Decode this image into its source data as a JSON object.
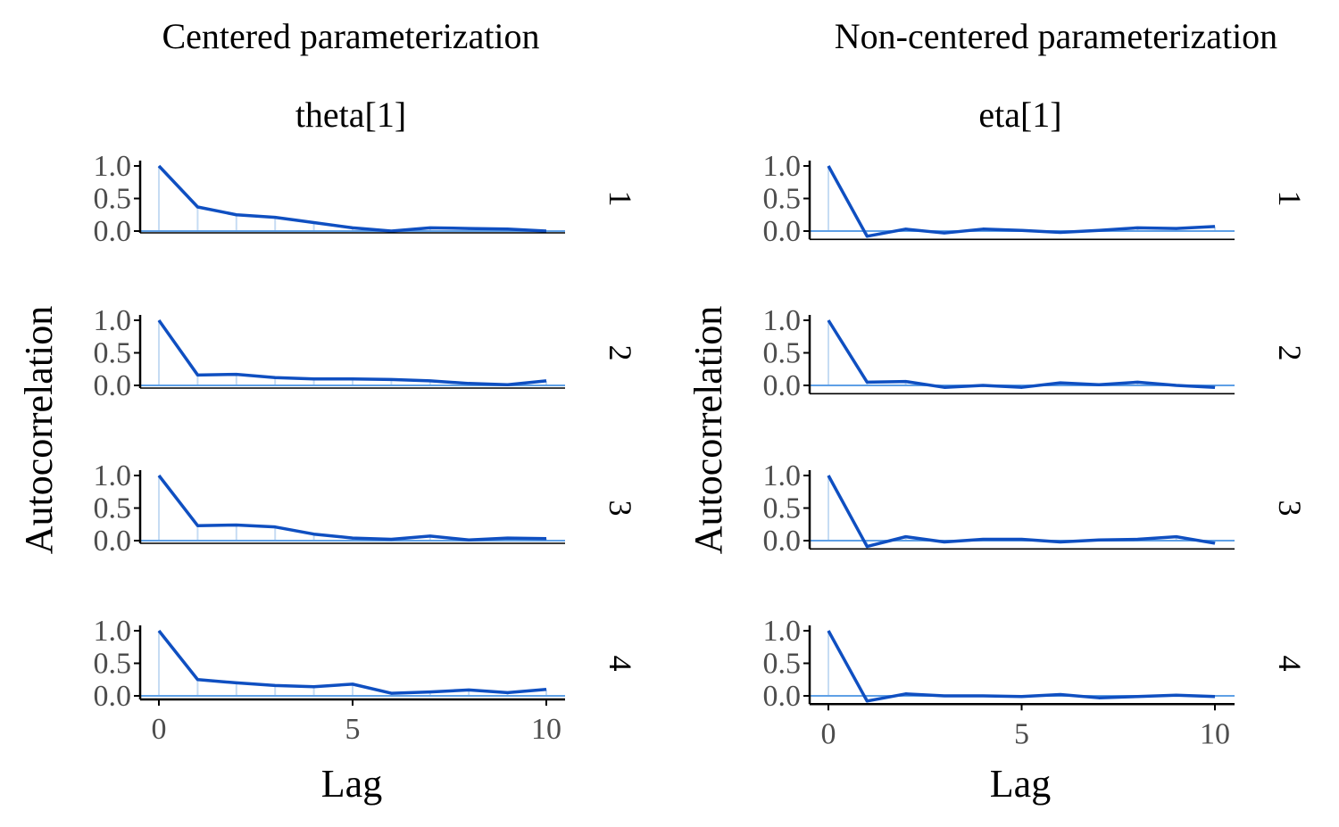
{
  "colors": {
    "line": "#0f4fc1",
    "zero_line": "#5fa0e6",
    "lag_spike": "#c6dcf3",
    "axis": "#000000",
    "tick_text": "#4d4d4d",
    "title_text": "#000000"
  },
  "chart_data": [
    {
      "type": "line",
      "title": "Centered parameterization",
      "parameter": "theta[1]",
      "xlabel": "Lag",
      "ylabel": "Autocorrelation",
      "xlim": [
        0,
        10
      ],
      "ylim": [
        0,
        1
      ],
      "x_ticks": [
        "0",
        "5",
        "10"
      ],
      "y_ticks": [
        "0.0",
        "0.5",
        "1.0"
      ],
      "x": [
        0,
        1,
        2,
        3,
        4,
        5,
        6,
        7,
        8,
        9,
        10
      ],
      "series": [
        {
          "chain": "1",
          "values": [
            1.0,
            0.37,
            0.25,
            0.21,
            0.13,
            0.05,
            0.0,
            0.05,
            0.04,
            0.03,
            0.0
          ]
        },
        {
          "chain": "2",
          "values": [
            1.0,
            0.16,
            0.17,
            0.12,
            0.1,
            0.1,
            0.09,
            0.07,
            0.03,
            0.01,
            0.07
          ]
        },
        {
          "chain": "3",
          "values": [
            1.0,
            0.23,
            0.24,
            0.21,
            0.1,
            0.04,
            0.02,
            0.07,
            0.01,
            0.04,
            0.03
          ]
        },
        {
          "chain": "4",
          "values": [
            1.0,
            0.25,
            0.2,
            0.16,
            0.14,
            0.18,
            0.04,
            0.06,
            0.09,
            0.05,
            0.1
          ]
        }
      ]
    },
    {
      "type": "line",
      "title": "Non-centered parameterization",
      "parameter": "eta[1]",
      "xlabel": "Lag",
      "ylabel": "Autocorrelation",
      "xlim": [
        0,
        10
      ],
      "ylim": [
        -0.1,
        1
      ],
      "x_ticks": [
        "0",
        "5",
        "10"
      ],
      "y_ticks": [
        "0.0",
        "0.5",
        "1.0"
      ],
      "x": [
        0,
        1,
        2,
        3,
        4,
        5,
        6,
        7,
        8,
        9,
        10
      ],
      "series": [
        {
          "chain": "1",
          "values": [
            1.0,
            -0.08,
            0.03,
            -0.03,
            0.03,
            0.01,
            -0.02,
            0.01,
            0.05,
            0.04,
            0.07
          ]
        },
        {
          "chain": "2",
          "values": [
            1.0,
            0.05,
            0.06,
            -0.03,
            0.0,
            -0.03,
            0.04,
            0.01,
            0.05,
            0.0,
            -0.03
          ]
        },
        {
          "chain": "3",
          "values": [
            1.0,
            -0.09,
            0.06,
            -0.02,
            0.02,
            0.02,
            -0.02,
            0.01,
            0.02,
            0.06,
            -0.04
          ]
        },
        {
          "chain": "4",
          "values": [
            1.0,
            -0.08,
            0.03,
            0.0,
            0.0,
            -0.01,
            0.02,
            -0.03,
            -0.01,
            0.01,
            -0.01
          ]
        }
      ]
    }
  ]
}
